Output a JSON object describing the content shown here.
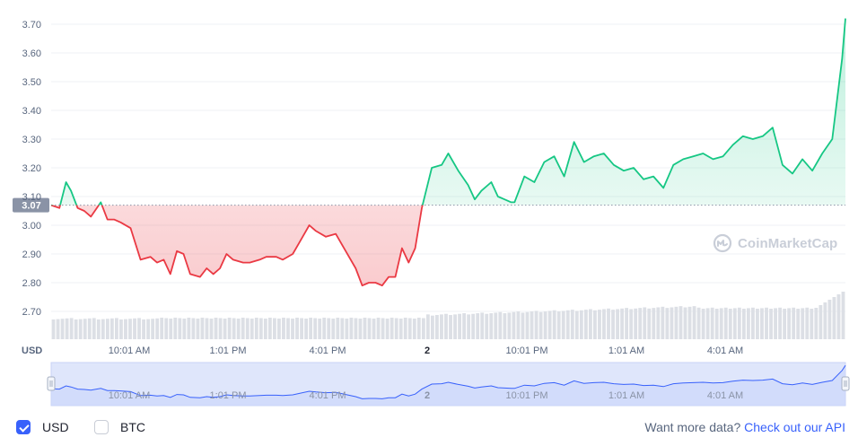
{
  "chart_data": {
    "type": "line",
    "currency_unit": "USD",
    "y_ticks": [
      "3.70",
      "3.60",
      "3.50",
      "3.40",
      "3.30",
      "3.20",
      "3.10",
      "3.00",
      "2.90",
      "2.80",
      "2.70"
    ],
    "ylim": [
      2.64,
      3.75
    ],
    "reference_value": 3.07,
    "reference_label": "3.07",
    "x_ticks": [
      "10:01 AM",
      "1:01 PM",
      "4:01 PM",
      "2",
      "10:01 PM",
      "1:01 AM",
      "4:01 AM"
    ],
    "navigator_ticks": [
      "10:01 AM",
      "1:01 PM",
      "4:01 PM",
      "2",
      "10:01 PM",
      "1:01 AM",
      "4:01 AM"
    ],
    "above_color": "#16c784",
    "below_color": "#ea3943",
    "series": [
      {
        "x_hours": [
          0,
          0.25,
          0.45,
          0.6,
          0.8,
          1.0,
          1.2,
          1.5,
          1.7,
          1.9,
          2.1,
          2.4,
          2.7,
          3.0,
          3.2,
          3.4,
          3.6,
          3.8,
          4.0,
          4.2,
          4.5,
          4.7,
          4.9,
          5.1,
          5.3,
          5.5,
          5.8,
          6.0,
          6.3,
          6.5,
          6.8,
          7.0,
          7.3,
          7.5,
          7.8,
          8.0,
          8.3,
          8.6,
          8.9,
          9.2,
          9.4,
          9.6,
          9.8,
          10.0,
          10.2,
          10.4,
          10.6,
          10.8,
          11.0,
          11.2,
          11.5,
          11.8,
          12.0,
          12.3,
          12.6,
          12.8,
          13.0,
          13.3,
          13.5,
          13.7,
          13.9,
          14.0,
          14.3,
          14.6,
          14.9,
          15.2,
          15.5,
          15.8,
          16.1,
          16.4,
          16.7,
          17.0,
          17.3,
          17.6,
          17.9,
          18.2,
          18.5,
          18.8,
          19.1,
          19.4,
          19.7,
          20.0,
          20.3,
          20.6,
          20.9,
          21.2,
          21.5,
          21.8,
          22.1,
          22.4,
          22.7,
          23.0,
          23.3,
          23.6,
          23.9,
          24.0
        ],
        "values": [
          3.07,
          3.06,
          3.15,
          3.12,
          3.06,
          3.05,
          3.03,
          3.08,
          3.02,
          3.02,
          3.01,
          2.99,
          2.88,
          2.89,
          2.87,
          2.88,
          2.83,
          2.91,
          2.9,
          2.83,
          2.82,
          2.85,
          2.83,
          2.85,
          2.9,
          2.88,
          2.87,
          2.87,
          2.88,
          2.89,
          2.89,
          2.88,
          2.9,
          2.94,
          3.0,
          2.98,
          2.96,
          2.97,
          2.91,
          2.85,
          2.79,
          2.8,
          2.8,
          2.79,
          2.82,
          2.82,
          2.92,
          2.87,
          2.92,
          3.06,
          3.2,
          3.21,
          3.25,
          3.19,
          3.14,
          3.09,
          3.12,
          3.15,
          3.1,
          3.09,
          3.08,
          3.08,
          3.17,
          3.15,
          3.22,
          3.24,
          3.17,
          3.29,
          3.22,
          3.24,
          3.25,
          3.21,
          3.19,
          3.2,
          3.16,
          3.17,
          3.13,
          3.21,
          3.23,
          3.24,
          3.25,
          3.23,
          3.24,
          3.28,
          3.31,
          3.3,
          3.31,
          3.34,
          3.21,
          3.18,
          3.23,
          3.19,
          3.25,
          3.3,
          3.58,
          3.72
        ]
      }
    ]
  },
  "watermark": {
    "text": "CoinMarketCap"
  },
  "footer": {
    "usd_label": "USD",
    "btc_label": "BTC",
    "more_prefix": "Want more data?",
    "more_link": "Check out our API"
  },
  "colors": {
    "accent": "#3861fb",
    "volume": "#dcdfe5",
    "navigator_fill": "#dfe6fb",
    "navigator_line": "#3861fb"
  }
}
